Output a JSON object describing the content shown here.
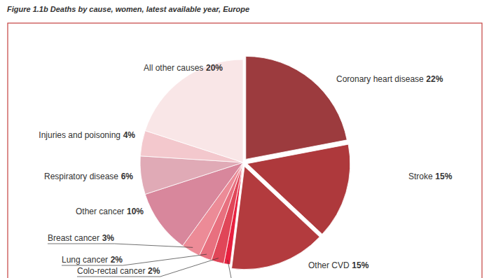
{
  "chart_data": {
    "type": "pie",
    "title": "Figure 1.1b  Deaths by cause, women, latest available year, Europe",
    "categories": [
      "Coronary heart disease",
      "Stroke",
      "Other CVD",
      null,
      "Colo-rectal cancer",
      "Lung cancer",
      "Breast cancer",
      "Other cancer",
      "Respiratory disease",
      "Injuries and poisoning",
      "All other causes"
    ],
    "values": [
      22,
      15,
      15,
      1,
      2,
      2,
      3,
      10,
      6,
      4,
      20
    ],
    "value_labels": [
      "22%",
      "15%",
      "15%",
      null,
      "2%",
      "2%",
      "3%",
      "10%",
      "6%",
      "4%",
      "20%"
    ],
    "colors": [
      "#9c3b3e",
      "#ae393c",
      "#b33b3e",
      "#e8203f",
      "#e04658",
      "#e8707f",
      "#ec8b97",
      "#d8879c",
      "#e0aab6",
      "#f3c8cd",
      "#f9e6e7"
    ],
    "data_labels": true
  }
}
